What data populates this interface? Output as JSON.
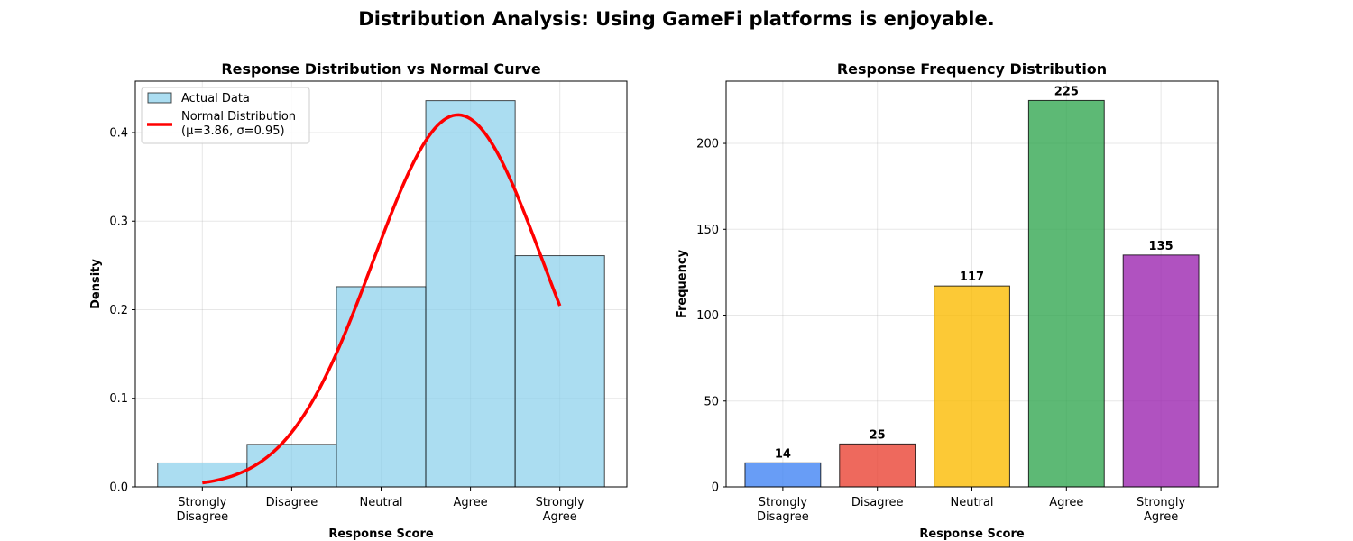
{
  "figure": {
    "suptitle": "Distribution Analysis: Using GameFi platforms is enjoyable."
  },
  "chart_data": [
    {
      "type": "bar",
      "title": "Response Distribution vs Normal Curve",
      "xlabel": "Response Score",
      "ylabel": "Density",
      "categories": [
        "Strongly\nDisagree",
        "Disagree",
        "Neutral",
        "Agree",
        "Strongly\nAgree"
      ],
      "x": [
        1,
        2,
        3,
        4,
        5
      ],
      "xlim": [
        0.25,
        5.75
      ],
      "ylim": [
        0,
        0.458
      ],
      "yticks": [
        0.0,
        0.1,
        0.2,
        0.3,
        0.4
      ],
      "ytick_labels": [
        "0.0",
        "0.1",
        "0.2",
        "0.3",
        "0.4"
      ],
      "grid": true,
      "legend": "top-left",
      "series": [
        {
          "name": "Actual Data",
          "kind": "histogram",
          "values": [
            0.027,
            0.048,
            0.226,
            0.436,
            0.261
          ],
          "color": "#87CEEB"
        },
        {
          "name": "Normal Distribution\n(μ=3.86, σ=0.95)",
          "kind": "line",
          "mu": 3.86,
          "sigma": 0.95,
          "x_range": [
            1,
            5
          ],
          "color": "#FF0000"
        }
      ]
    },
    {
      "type": "bar",
      "title": "Response Frequency Distribution",
      "xlabel": "Response Score",
      "ylabel": "Frequency",
      "categories": [
        "Strongly\nDisagree",
        "Disagree",
        "Neutral",
        "Agree",
        "Strongly\nAgree"
      ],
      "values": [
        14,
        25,
        117,
        225,
        135
      ],
      "data_labels": [
        "14",
        "25",
        "117",
        "225",
        "135"
      ],
      "colors": [
        "#4285F4",
        "#EA4335",
        "#FBBC04",
        "#34A853",
        "#9C27B0"
      ],
      "xlim": [
        0.4,
        5.6
      ],
      "ylim": [
        0,
        236.25
      ],
      "yticks": [
        0,
        50,
        100,
        150,
        200
      ],
      "ytick_labels": [
        "0",
        "50",
        "100",
        "150",
        "200"
      ],
      "grid": true
    }
  ]
}
